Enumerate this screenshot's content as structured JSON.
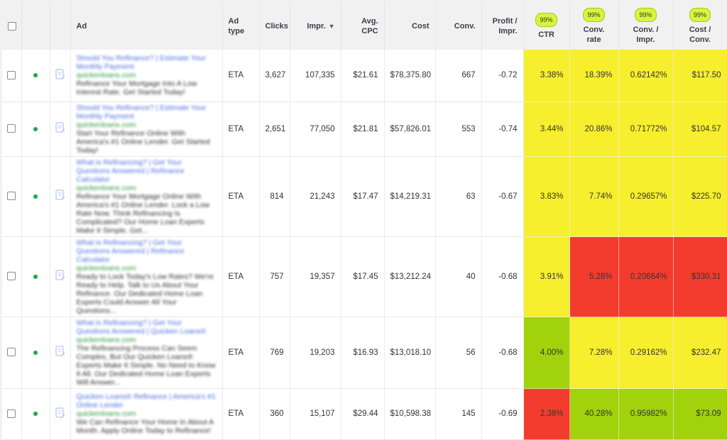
{
  "colors": {
    "good": "#a1d20b",
    "neutral": "#f7ee2d",
    "bad": "#f43c2e",
    "badge": "#d6f53c"
  },
  "headers": {
    "ad": "Ad",
    "ad_type": "Ad type",
    "clicks": "Clicks",
    "impr": "Impr.",
    "impr_sort_icon": "sort-descending-icon",
    "avg_cpc": "Avg. CPC",
    "cost": "Cost",
    "conv": "Conv.",
    "profit_line1": "Profit /",
    "profit_line2": "Impr.",
    "ctr": "CTR",
    "conv_rate": "Conv. rate",
    "conv_impr": "Conv. / Impr.",
    "cost_conv": "Cost / Conv.",
    "ctr_badge": "99%",
    "conv_rate_badge": "99%",
    "conv_impr_badge": "99%",
    "cost_conv_badge": "99%"
  },
  "rows": [
    {
      "title": "Should You Refinance? | Estimate Your Monthly Payment",
      "url": "quickenloans.com",
      "desc": "Refinance Your Mortgage Into A Low Interest Rate. Get Started Today!",
      "ad_type": "ETA",
      "clicks": "3,627",
      "impr": "107,335",
      "avg_cpc": "$21.61",
      "cost": "$78,375.80",
      "conv": "667",
      "profit": "-0.72",
      "ctr": "3.38%",
      "conv_rate": "18.39%",
      "conv_impr": "0.62142%",
      "cost_conv": "$117.50",
      "ctr_c": "yellow",
      "cr_c": "yellow",
      "ci_c": "yellow",
      "cc_c": "yellow"
    },
    {
      "title": "Should You Refinance? | Estimate Your Monthly Payment",
      "url": "quickenloans.com",
      "desc": "Start Your Refinance Online With America's #1 Online Lender. Get Started Today!",
      "ad_type": "ETA",
      "clicks": "2,651",
      "impr": "77,050",
      "avg_cpc": "$21.81",
      "cost": "$57,826.01",
      "conv": "553",
      "profit": "-0.74",
      "ctr": "3.44%",
      "conv_rate": "20.86%",
      "conv_impr": "0.71772%",
      "cost_conv": "$104.57",
      "ctr_c": "yellow",
      "cr_c": "yellow",
      "ci_c": "yellow",
      "cc_c": "yellow"
    },
    {
      "title": "What is Refinancing? | Get Your Questions Answered | Refinance Calculator",
      "url": "quickenloans.com",
      "desc": "Refinance Your Mortgage Online With America's #1 Online Lender. Lock a Low Rate Now. Think Refinancing Is Complicated? Our Home Loan Experts Make It Simple. Get...",
      "ad_type": "ETA",
      "clicks": "814",
      "impr": "21,243",
      "avg_cpc": "$17.47",
      "cost": "$14,219.31",
      "conv": "63",
      "profit": "-0.67",
      "ctr": "3.83%",
      "conv_rate": "7.74%",
      "conv_impr": "0.29657%",
      "cost_conv": "$225.70",
      "ctr_c": "yellow",
      "cr_c": "yellow",
      "ci_c": "yellow",
      "cc_c": "yellow"
    },
    {
      "title": "What is Refinancing? | Get Your Questions Answered | Refinance Calculator",
      "url": "quickenloans.com",
      "desc": "Ready to Lock Today's Low Rates? We're Ready to Help. Talk to Us About Your Refinance. Our Dedicated Home Loan Experts Could Answer All Your Questions...",
      "ad_type": "ETA",
      "clicks": "757",
      "impr": "19,357",
      "avg_cpc": "$17.45",
      "cost": "$13,212.24",
      "conv": "40",
      "profit": "-0.68",
      "ctr": "3.91%",
      "conv_rate": "5.28%",
      "conv_impr": "0.20664%",
      "cost_conv": "$330.31",
      "ctr_c": "yellow",
      "cr_c": "red",
      "ci_c": "red",
      "cc_c": "red"
    },
    {
      "title": "What is Refinancing? | Get Your Questions Answered | Quicken Loans®",
      "url": "quickenloans.com",
      "desc": "The Refinancing Process Can Seem Complex, But Our Quicken Loans® Experts Make It Simple. No Need to Know It All. Our Dedicated Home Loan Experts Will Answer...",
      "ad_type": "ETA",
      "clicks": "769",
      "impr": "19,203",
      "avg_cpc": "$16.93",
      "cost": "$13,018.10",
      "conv": "56",
      "profit": "-0.68",
      "ctr": "4.00%",
      "conv_rate": "7.28%",
      "conv_impr": "0.29162%",
      "cost_conv": "$232.47",
      "ctr_c": "green",
      "cr_c": "yellow",
      "ci_c": "yellow",
      "cc_c": "yellow"
    },
    {
      "title": "Quicken Loans® Refinance | America's #1 Online Lender",
      "url": "quickenloans.com",
      "desc": "We Can Refinance Your Home In About A Month. Apply Online Today to Refinance!",
      "ad_type": "ETA",
      "clicks": "360",
      "impr": "15,107",
      "avg_cpc": "$29.44",
      "cost": "$10,598.38",
      "conv": "145",
      "profit": "-0.69",
      "ctr": "2.38%",
      "conv_rate": "40.28%",
      "conv_impr": "0.95982%",
      "cost_conv": "$73.09",
      "ctr_c": "red",
      "cr_c": "green",
      "ci_c": "green",
      "cc_c": "green"
    }
  ]
}
